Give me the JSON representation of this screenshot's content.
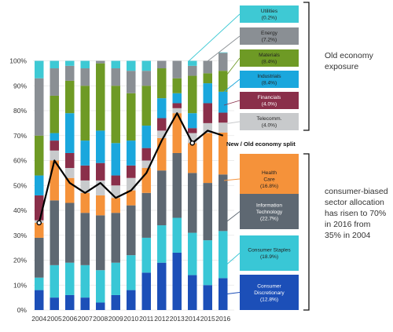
{
  "chart_data": {
    "type": "bar",
    "stacked": true,
    "categories": [
      "2004",
      "2005",
      "2006",
      "2007",
      "2008",
      "2009",
      "2010",
      "2011",
      "2012",
      "2013",
      "2014",
      "2015",
      "2016"
    ],
    "ylim": [
      0,
      100
    ],
    "yticks": [
      "0%",
      "10%",
      "20%",
      "30%",
      "40%",
      "50%",
      "60%",
      "70%",
      "80%",
      "90%",
      "100%"
    ],
    "series": [
      {
        "name": "Consumer Discretionary",
        "pct": "(12.8%)",
        "color": "#1c4fb8",
        "values": [
          8,
          5,
          6,
          5,
          3,
          6,
          8,
          15,
          19,
          23,
          14,
          10,
          12.8
        ]
      },
      {
        "name": "Consumer Staples",
        "pct": "(18.9%)",
        "color": "#39c7d6",
        "values": [
          5,
          13,
          13,
          13,
          13,
          13,
          14,
          14,
          15,
          14,
          17,
          18,
          18.9
        ]
      },
      {
        "name": "Information Technology",
        "pct": "(22.7%)",
        "color": "#5e6872",
        "values": [
          16,
          26,
          24,
          21,
          22,
          20,
          20,
          18,
          22,
          26,
          24,
          23,
          22.7
        ]
      },
      {
        "name": "Health Care",
        "pct": "(16.8%)",
        "color": "#f5923a",
        "values": [
          6,
          16,
          10,
          8,
          8,
          6,
          6,
          10,
          13,
          16,
          12,
          20,
          16.8
        ]
      },
      {
        "name": "Telecomm.",
        "pct": "(4.0%)",
        "color": "#c8cacc",
        "values": [
          1,
          4,
          4,
          5,
          6,
          5,
          5,
          3,
          3,
          2,
          4,
          4,
          4.0
        ]
      },
      {
        "name": "Financials",
        "pct": "(4.0%)",
        "color": "#8a2f4a",
        "values": [
          10,
          4,
          6,
          6,
          7,
          4,
          5,
          5,
          5,
          2,
          2,
          8,
          4.0
        ]
      },
      {
        "name": "Industrials",
        "pct": "(8.4%)",
        "color": "#1aa7dd",
        "values": [
          8,
          3,
          16,
          10,
          13,
          13,
          10,
          9,
          8,
          4,
          6,
          8,
          8.4
        ]
      },
      {
        "name": "Materials",
        "pct": "(8.4%)",
        "color": "#6e9a25",
        "values": [
          16,
          15,
          13,
          22,
          27,
          23,
          19,
          16,
          12,
          6,
          15,
          4,
          8.4
        ]
      },
      {
        "name": "Energy",
        "pct": "(7.2%)",
        "color": "#8a8f94",
        "values": [
          23,
          11,
          6,
          7,
          1,
          7,
          9,
          6,
          3,
          7,
          4,
          5,
          7.2
        ]
      },
      {
        "name": "Utilities",
        "pct": "(0.2%)",
        "color": "#3ec9d4",
        "values": [
          7,
          3,
          2,
          3,
          0,
          3,
          4,
          4,
          0,
          0,
          2,
          0,
          0.2
        ]
      }
    ],
    "line": {
      "name": "New / Old economy split",
      "color": "#000000",
      "values": [
        35,
        60,
        51,
        47,
        51,
        45,
        48,
        55,
        68,
        79,
        67,
        72,
        70
      ]
    },
    "legend_boxes": [
      {
        "series": "Utilities",
        "fill": "#3ec9d4",
        "text_color": "#222"
      },
      {
        "series": "Energy",
        "fill": "#8a8f94",
        "text_color": "#222"
      },
      {
        "series": "Materials",
        "fill": "#6e9a25",
        "text_color": "#222"
      },
      {
        "series": "Industrials",
        "fill": "#1aa7dd",
        "text_color": "#222"
      },
      {
        "series": "Financials",
        "fill": "#8a2f4a",
        "text_color": "#ffffff"
      },
      {
        "series": "Telecomm.",
        "fill": "#c8cacc",
        "text_color": "#222"
      },
      {
        "series": "Health Care",
        "fill": "#f5923a",
        "text_color": "#222"
      },
      {
        "series": "Information Technology",
        "fill": "#5e6872",
        "text_color": "#ffffff"
      },
      {
        "series": "Consumer Staples",
        "fill": "#39c7d6",
        "text_color": "#222"
      },
      {
        "series": "Consumer Discretionary",
        "fill": "#1c4fb8",
        "text_color": "#ffffff"
      }
    ],
    "labels": {
      "old_economy": [
        "Old economy",
        "exposure"
      ],
      "split": "New / Old economy split",
      "consumer_note": [
        "consumer-biased",
        "sector allocation",
        "has risen to 70%",
        "in 2016 from",
        "35% in 2004"
      ]
    }
  }
}
